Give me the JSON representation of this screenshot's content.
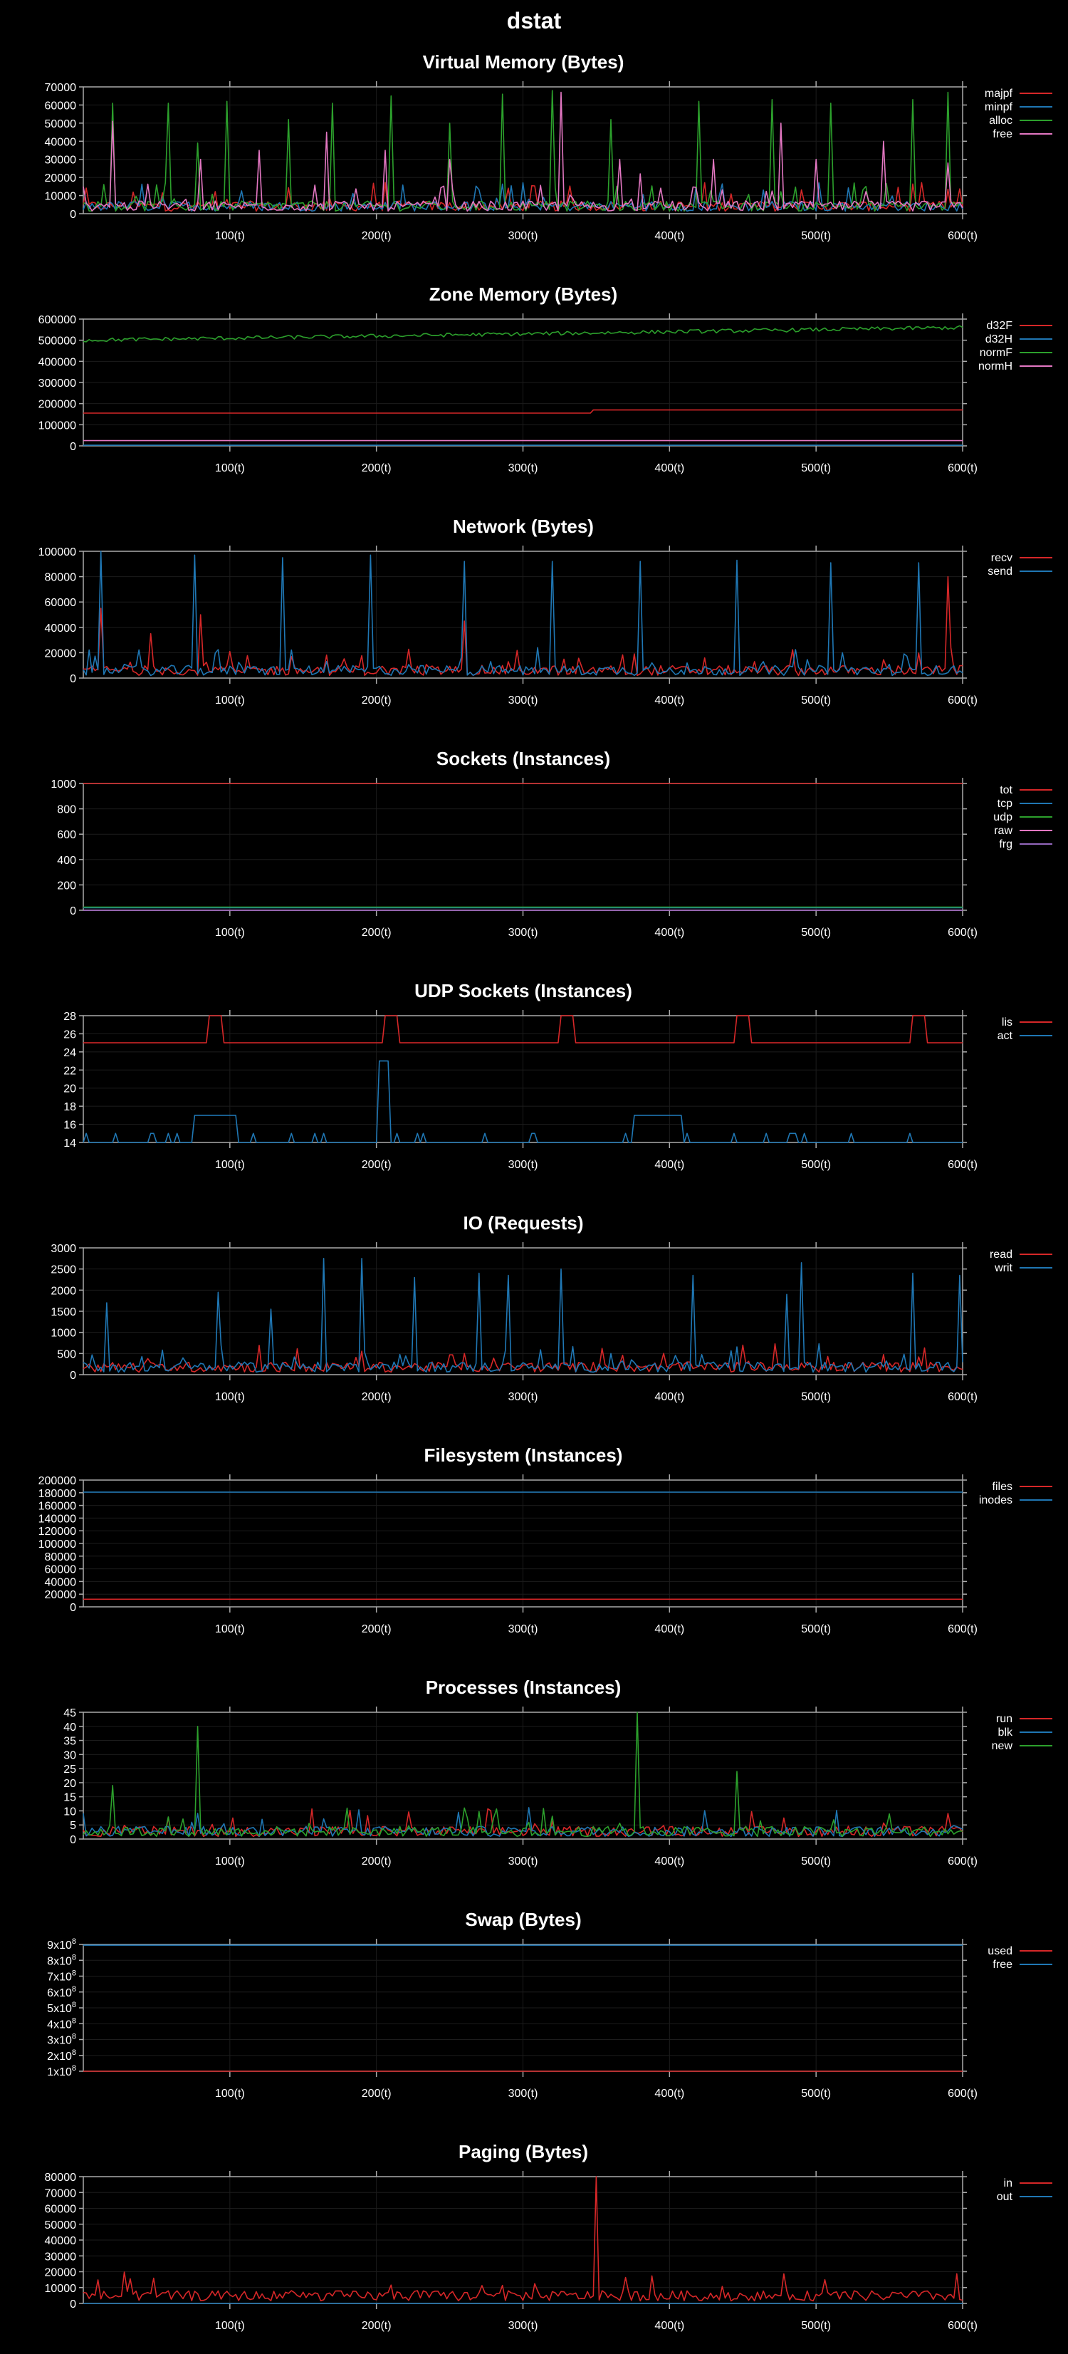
{
  "page_title": "dstat",
  "chart_data": [
    {
      "type": "line",
      "title": "Virtual Memory (Bytes)",
      "x_ticks": [
        "100(t)",
        "200(t)",
        "300(t)",
        "400(t)",
        "500(t)",
        "600(t)"
      ],
      "xlim": [
        0,
        600
      ],
      "ylim": [
        0,
        70000
      ],
      "y_ticks": [
        "0",
        "10000",
        "20000",
        "30000",
        "40000",
        "50000",
        "60000",
        "70000"
      ],
      "series": [
        {
          "name": "majpf",
          "color": "#d62728"
        },
        {
          "name": "minpf",
          "color": "#1f77b4"
        },
        {
          "name": "alloc",
          "color": "#2ca02c",
          "spikes": [
            [
              20,
              61000
            ],
            [
              58,
              61000
            ],
            [
              78,
              39000
            ],
            [
              98,
              62000
            ],
            [
              140,
              52000
            ],
            [
              170,
              61000
            ],
            [
              210,
              65000
            ],
            [
              250,
              50000
            ],
            [
              285,
              66000
            ],
            [
              320,
              68000
            ],
            [
              360,
              52000
            ],
            [
              420,
              62000
            ],
            [
              470,
              63000
            ],
            [
              510,
              61000
            ],
            [
              565,
              63000
            ],
            [
              590,
              67000
            ]
          ]
        },
        {
          "name": "free",
          "color": "#e377c2",
          "spikes": [
            [
              20,
              51000
            ],
            [
              80,
              30000
            ],
            [
              120,
              35000
            ],
            [
              165,
              45000
            ],
            [
              205,
              35000
            ],
            [
              250,
              30000
            ],
            [
              325,
              67000
            ],
            [
              365,
              30000
            ],
            [
              380,
              22000
            ],
            [
              430,
              30000
            ],
            [
              475,
              50000
            ],
            [
              500,
              30000
            ],
            [
              545,
              40000
            ],
            [
              590,
              28000
            ]
          ]
        }
      ]
    },
    {
      "type": "line",
      "title": "Zone Memory (Bytes)",
      "x_ticks": [
        "100(t)",
        "200(t)",
        "300(t)",
        "400(t)",
        "500(t)",
        "600(t)"
      ],
      "xlim": [
        0,
        600
      ],
      "ylim": [
        0,
        600000
      ],
      "y_ticks": [
        "0",
        "100000",
        "200000",
        "300000",
        "400000",
        "500000",
        "600000"
      ],
      "series": [
        {
          "name": "d32F",
          "color": "#d62728",
          "level": 155000,
          "level_end": 170000
        },
        {
          "name": "d32H",
          "color": "#1f77b4",
          "level": 3000
        },
        {
          "name": "normF",
          "color": "#2ca02c",
          "level": 500000,
          "level_end": 560000
        },
        {
          "name": "normH",
          "color": "#e377c2",
          "level": 25000
        }
      ]
    },
    {
      "type": "line",
      "title": "Network (Bytes)",
      "x_ticks": [
        "100(t)",
        "200(t)",
        "300(t)",
        "400(t)",
        "500(t)",
        "600(t)"
      ],
      "xlim": [
        0,
        600
      ],
      "ylim": [
        0,
        100000
      ],
      "y_ticks": [
        "0",
        "20000",
        "40000",
        "60000",
        "80000",
        "100000"
      ],
      "series": [
        {
          "name": "recv",
          "color": "#d62728",
          "spikes": [
            [
              12,
              55000
            ],
            [
              45,
              35000
            ],
            [
              80,
              50000
            ],
            [
              260,
              45000
            ],
            [
              590,
              80000
            ]
          ]
        },
        {
          "name": "send",
          "color": "#1f77b4",
          "spikes": [
            [
              12,
              100000
            ],
            [
              75,
              97000
            ],
            [
              135,
              95000
            ],
            [
              195,
              97000
            ],
            [
              260,
              92000
            ],
            [
              320,
              92000
            ],
            [
              380,
              92000
            ],
            [
              445,
              93000
            ],
            [
              510,
              91000
            ],
            [
              570,
              91000
            ]
          ]
        }
      ]
    },
    {
      "type": "line",
      "title": "Sockets (Instances)",
      "x_ticks": [
        "100(t)",
        "200(t)",
        "300(t)",
        "400(t)",
        "500(t)",
        "600(t)"
      ],
      "xlim": [
        0,
        600
      ],
      "ylim": [
        0,
        1000
      ],
      "y_ticks": [
        "0",
        "200",
        "400",
        "600",
        "800",
        "1000"
      ],
      "series": [
        {
          "name": "tot",
          "color": "#d62728",
          "level": 1000
        },
        {
          "name": "tcp",
          "color": "#1f77b4",
          "level": 20
        },
        {
          "name": "udp",
          "color": "#2ca02c",
          "level": 25
        },
        {
          "name": "raw",
          "color": "#e377c2",
          "level": 0
        },
        {
          "name": "frg",
          "color": "#9467bd",
          "level": 0
        }
      ]
    },
    {
      "type": "line",
      "title": "UDP Sockets (Instances)",
      "x_ticks": [
        "100(t)",
        "200(t)",
        "300(t)",
        "400(t)",
        "500(t)",
        "600(t)"
      ],
      "xlim": [
        0,
        600
      ],
      "ylim": [
        14,
        28
      ],
      "y_ticks": [
        "14",
        "16",
        "18",
        "20",
        "22",
        "24",
        "26",
        "28"
      ],
      "series": [
        {
          "name": "lis",
          "color": "#d62728",
          "level": 25
        },
        {
          "name": "act",
          "color": "#1f77b4",
          "level": 14
        }
      ]
    },
    {
      "type": "line",
      "title": "IO (Requests)",
      "x_ticks": [
        "100(t)",
        "200(t)",
        "300(t)",
        "400(t)",
        "500(t)",
        "600(t)"
      ],
      "xlim": [
        0,
        600
      ],
      "ylim": [
        0,
        3000
      ],
      "y_ticks": [
        "0",
        "500",
        "1000",
        "1500",
        "2000",
        "2500",
        "3000"
      ],
      "series": [
        {
          "name": "read",
          "color": "#d62728"
        },
        {
          "name": "writ",
          "color": "#1f77b4",
          "spikes": [
            [
              15,
              1700
            ],
            [
              92,
              1950
            ],
            [
              128,
              1550
            ],
            [
              163,
              2750
            ],
            [
              190,
              2750
            ],
            [
              225,
              2300
            ],
            [
              270,
              2400
            ],
            [
              290,
              2350
            ],
            [
              325,
              2500
            ],
            [
              360,
              500
            ],
            [
              415,
              2350
            ],
            [
              480,
              1900
            ],
            [
              490,
              2650
            ],
            [
              565,
              2400
            ],
            [
              598,
              2350
            ]
          ]
        }
      ]
    },
    {
      "type": "line",
      "title": "Filesystem (Instances)",
      "x_ticks": [
        "100(t)",
        "200(t)",
        "300(t)",
        "400(t)",
        "500(t)",
        "600(t)"
      ],
      "xlim": [
        0,
        600
      ],
      "ylim": [
        0,
        200000
      ],
      "y_ticks": [
        "0",
        "20000",
        "40000",
        "60000",
        "80000",
        "100000",
        "120000",
        "140000",
        "160000",
        "180000",
        "200000"
      ],
      "series": [
        {
          "name": "files",
          "color": "#d62728",
          "level": 12000
        },
        {
          "name": "inodes",
          "color": "#1f77b4",
          "level": 181000
        }
      ]
    },
    {
      "type": "line",
      "title": "Processes (Instances)",
      "x_ticks": [
        "100(t)",
        "200(t)",
        "300(t)",
        "400(t)",
        "500(t)",
        "600(t)"
      ],
      "xlim": [
        0,
        600
      ],
      "ylim": [
        0,
        45
      ],
      "y_ticks": [
        "0",
        "5",
        "10",
        "15",
        "20",
        "25",
        "30",
        "35",
        "40",
        "45"
      ],
      "series": [
        {
          "name": "run",
          "color": "#d62728"
        },
        {
          "name": "blk",
          "color": "#1f77b4"
        },
        {
          "name": "new",
          "color": "#2ca02c",
          "spikes": [
            [
              78,
              40
            ],
            [
              378,
              45
            ],
            [
              445,
              24
            ],
            [
              20,
              19
            ]
          ]
        }
      ]
    },
    {
      "type": "line",
      "title": "Swap (Bytes)",
      "x_ticks": [
        "100(t)",
        "200(t)",
        "300(t)",
        "400(t)",
        "500(t)",
        "600(t)"
      ],
      "xlim": [
        0,
        600
      ],
      "ylim": [
        100000000,
        900000000
      ],
      "y_ticks": [
        "1x10",
        "2x10",
        "3x10",
        "4x10",
        "5x10",
        "6x10",
        "7x10",
        "8x10",
        "9x10"
      ],
      "y_tick_exponent": "8",
      "series": [
        {
          "name": "used",
          "color": "#d62728",
          "level": 100000000
        },
        {
          "name": "free",
          "color": "#1f77b4",
          "level": 895000000
        }
      ]
    },
    {
      "type": "line",
      "title": "Paging (Bytes)",
      "x_ticks": [
        "100(t)",
        "200(t)",
        "300(t)",
        "400(t)",
        "500(t)",
        "600(t)"
      ],
      "xlim": [
        0,
        600
      ],
      "ylim": [
        0,
        80000
      ],
      "y_ticks": [
        "0",
        "10000",
        "20000",
        "30000",
        "40000",
        "50000",
        "60000",
        "70000",
        "80000"
      ],
      "series": [
        {
          "name": "in",
          "color": "#d62728",
          "spikes": [
            [
              350,
              80000
            ]
          ]
        },
        {
          "name": "out",
          "color": "#1f77b4",
          "level": 0
        }
      ]
    }
  ]
}
